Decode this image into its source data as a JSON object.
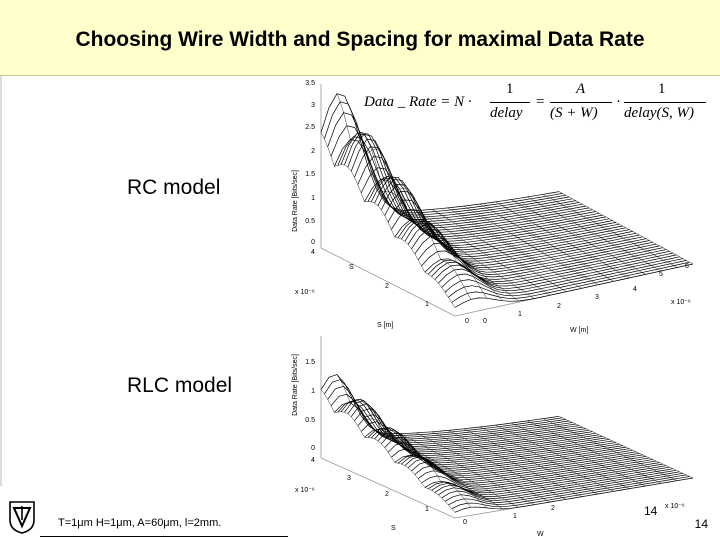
{
  "slide": {
    "title": "Choosing Wire Width and Spacing for maximal Data Rate",
    "formula": {
      "lhs": "Data _ Rate = N ·",
      "f1_num": "1",
      "f1_den": "delay",
      "eq": "=",
      "f2_num": "A",
      "f2_den": "(S + W)",
      "dot": "·",
      "f3_num": "1",
      "f3_den": "delay(S, W)"
    },
    "rc_label": "RC model",
    "rlc_label": "RLC model",
    "note": "T=1μm H=1μm, A=60μm, l=2mm.",
    "page_number": "14",
    "page_number_small": "14"
  },
  "plots": {
    "rc": {
      "zlabel": "Data Rate [Bits/sec]",
      "z_ticks": [
        "0",
        "0.5",
        "1",
        "1.5",
        "2",
        "2.5",
        "3",
        "3.5"
      ],
      "s_ticks": [
        "0",
        "1",
        "2",
        "3",
        "4"
      ],
      "w_ticks": [
        "0",
        "1",
        "2",
        "3",
        "4",
        "5",
        "6"
      ],
      "s_axis_label": "S [m]",
      "w_axis_label": "W [m]",
      "s_exp": "x 10⁻⁶",
      "w_exp": "x 10⁻⁶",
      "s_letter": "S"
    },
    "rlc": {
      "zlabel": "Data Rate [Bits/sec]",
      "z_ticks": [
        "0",
        "0.5",
        "1",
        "1.5"
      ],
      "s_ticks": [
        "0",
        "1",
        "2",
        "3",
        "4"
      ],
      "w_ticks": [
        "1",
        "2"
      ],
      "s_axis_label": "S",
      "w_axis_label": "W",
      "s_exp": "x 10⁻⁶",
      "w_exp": "x 10⁻⁶"
    }
  }
}
